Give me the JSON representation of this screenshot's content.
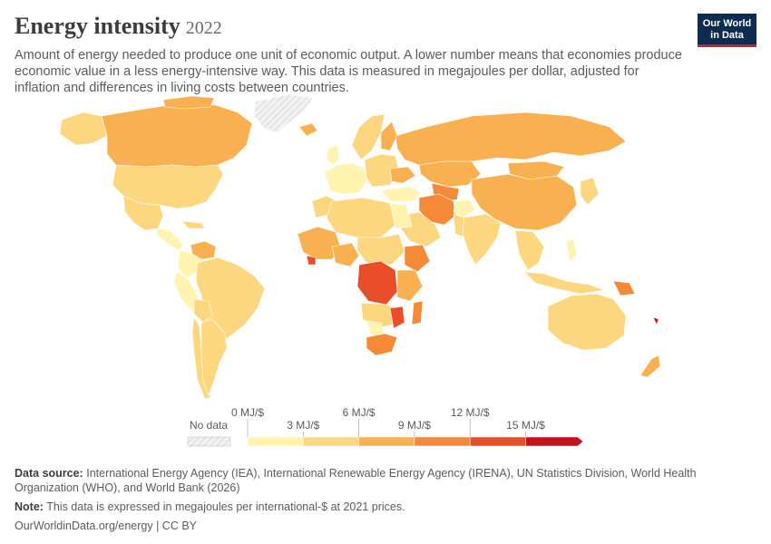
{
  "header": {
    "title": "Energy intensity",
    "year": "2022",
    "subtitle": "Amount of energy needed to produce one unit of economic output. A lower number means that economies produce economic value in a less energy-intensive way. This data is measured in megajoules per dollar, adjusted for inflation and differences in living costs between countries."
  },
  "logo": {
    "line1": "Our World",
    "line2": "in Data"
  },
  "colors": {
    "no_data": "#e6e6e6",
    "bins": [
      "#fff3b0",
      "#fcd77f",
      "#f8b050",
      "#f48a38",
      "#e94e2a",
      "#c4101f"
    ],
    "ocean": "#ffffff",
    "border": "#ffffff"
  },
  "legend": {
    "no_data_label": "No data",
    "top_labels": [
      "0 MJ/$",
      "6 MJ/$",
      "12 MJ/$"
    ],
    "bottom_labels": [
      "3 MJ/$",
      "9 MJ/$",
      "15 MJ/$"
    ],
    "bin_edges": [
      0,
      3,
      6,
      9,
      12,
      15
    ]
  },
  "footer": {
    "source_label": "Data source:",
    "source_text": "International Energy Agency (IEA), International Renewable Energy Agency (IRENA), UN Statistics Division, World Health Organization (WHO), and World Bank (2026)",
    "note_label": "Note:",
    "note_text": "This data is expressed in megajoules per international-$ at 2021 prices.",
    "credit": "OurWorldinData.org/energy | CC BY"
  }
}
